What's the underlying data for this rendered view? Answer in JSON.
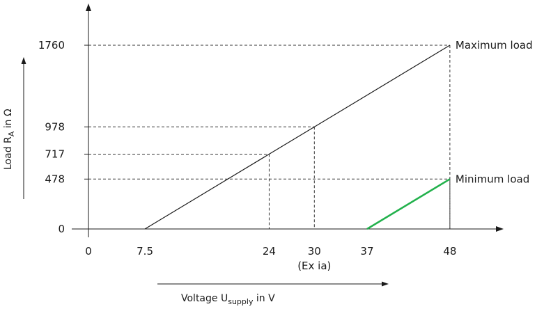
{
  "chart_data": {
    "type": "line",
    "title": "",
    "xlabel": {
      "main": "Voltage U",
      "sub": "supply",
      "tail": " in V"
    },
    "ylabel": {
      "main": "Load R",
      "sub": "A",
      "tail": " in Ω"
    },
    "x_ticks": [
      {
        "value": 0,
        "label": "0"
      },
      {
        "value": 7.5,
        "label": "7.5"
      },
      {
        "value": 24,
        "label": "24"
      },
      {
        "value": 30,
        "label": "30"
      },
      {
        "value": 37,
        "label": "37"
      },
      {
        "value": 48,
        "label": "48"
      }
    ],
    "x_tick_note": {
      "value": 30,
      "label": "(Ex ia)"
    },
    "y_ticks": [
      {
        "value": 0,
        "label": "0"
      },
      {
        "value": 478,
        "label": "478"
      },
      {
        "value": 717,
        "label": "717"
      },
      {
        "value": 978,
        "label": "978"
      },
      {
        "value": 1760,
        "label": "1760"
      }
    ],
    "series": [
      {
        "x": [
          7.5,
          48
        ],
        "y": [
          0,
          1760
        ],
        "color": "#1a1a1a",
        "label": "Maximum load"
      },
      {
        "x": [
          37,
          48
        ],
        "y": [
          0,
          478
        ],
        "color": "#22b14c",
        "label": "Minimum load"
      }
    ],
    "reference_points": [
      {
        "x": 24,
        "y": 717
      },
      {
        "x": 30,
        "y": 978
      },
      {
        "x": 48,
        "y": 1760
      },
      {
        "x": 48,
        "y": 478
      }
    ],
    "grid": false
  }
}
